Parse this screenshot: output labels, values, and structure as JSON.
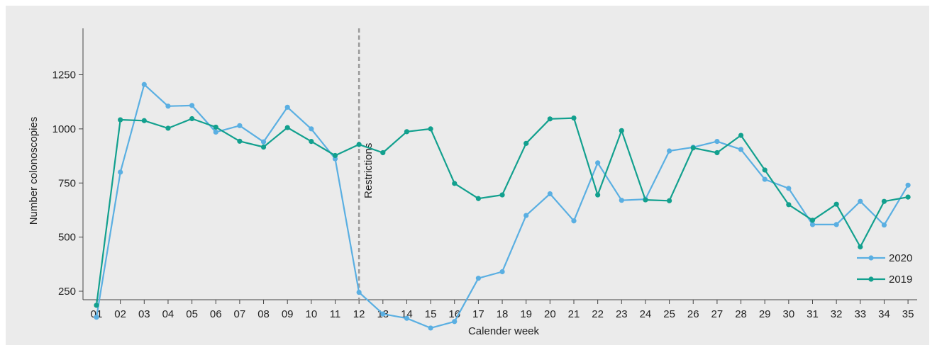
{
  "chart_data": {
    "type": "line",
    "title": "",
    "xlabel": "Calender week",
    "ylabel": "Number colonoscopies",
    "categories": [
      "01",
      "02",
      "03",
      "04",
      "05",
      "06",
      "07",
      "08",
      "09",
      "10",
      "11",
      "12",
      "13",
      "14",
      "15",
      "16",
      "17",
      "18",
      "19",
      "20",
      "21",
      "22",
      "23",
      "24",
      "25",
      "26",
      "27",
      "28",
      "29",
      "30",
      "31",
      "32",
      "33",
      "34",
      "35"
    ],
    "yticks": [
      250,
      500,
      750,
      1000,
      1250
    ],
    "ylim": [
      0,
      1300
    ],
    "grid": false,
    "legend_position": "bottom-right",
    "series": [
      {
        "name": "2020",
        "color": "#5aafe2",
        "values": [
          130,
          800,
          1205,
          1105,
          1108,
          985,
          1015,
          940,
          1100,
          1000,
          862,
          245,
          145,
          125,
          80,
          110,
          310,
          340,
          600,
          700,
          575,
          843,
          670,
          675,
          898,
          915,
          942,
          905,
          767,
          725,
          558,
          558,
          665,
          556,
          740
        ]
      },
      {
        "name": "2019",
        "color": "#12a08e",
        "values": [
          185,
          1042,
          1038,
          1003,
          1047,
          1008,
          943,
          916,
          1006,
          942,
          877,
          928,
          890,
          987,
          1000,
          748,
          678,
          695,
          933,
          1046,
          1050,
          695,
          992,
          672,
          668,
          912,
          890,
          970,
          810,
          650,
          578,
          652,
          455,
          665,
          685
        ]
      }
    ],
    "annotations": [
      {
        "text": "Restrictions",
        "at_category": "12",
        "style": "dashed-vertical-line"
      }
    ]
  }
}
